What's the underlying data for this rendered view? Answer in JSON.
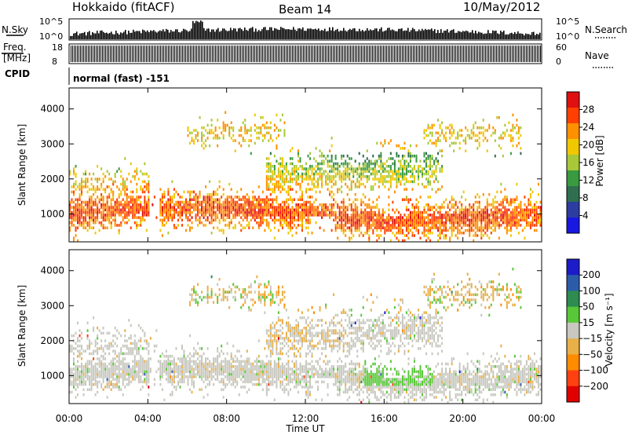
{
  "header": {
    "station": "Hokkaido (fitACF)",
    "beam": "Beam 14",
    "date": "10/May/2012"
  },
  "top_panels": {
    "nsky_label": "N.Sky",
    "nsky_ticks": [
      "10^5",
      "10^0"
    ],
    "nsearch_label": "N.Search",
    "freq_label_1": "Freq.",
    "freq_label_2": "[MHz]",
    "freq_ticks": [
      "18",
      "8"
    ],
    "nave_ticks": [
      "60",
      "0"
    ],
    "nave_label": "Nave",
    "cpid_label": "CPID",
    "cpid_text": "normal (fast) -151"
  },
  "chart_data": [
    {
      "type": "heatmap",
      "panel": "power",
      "ylabel": "Slant Range [km]",
      "xlabel": "",
      "ylim": [
        200,
        4600
      ],
      "yticks": [
        1000,
        2000,
        3000,
        4000
      ],
      "xlim_hours": [
        0,
        24
      ],
      "colorbar": {
        "label": "Power [dB]",
        "ticks": [
          4,
          8,
          12,
          16,
          20,
          24,
          28
        ],
        "range": [
          0,
          32
        ],
        "colors": [
          "#1818e0",
          "#2c3ca0",
          "#2f6f50",
          "#3a9a40",
          "#a8c838",
          "#f0c800",
          "#ff9000",
          "#ff4000",
          "#e01010"
        ]
      }
    },
    {
      "type": "heatmap",
      "panel": "velocity",
      "ylabel": "Slant Range [km]",
      "xlabel": "Time UT",
      "ylim": [
        200,
        4600
      ],
      "yticks": [
        1000,
        2000,
        3000,
        4000
      ],
      "xlim_hours": [
        0,
        24
      ],
      "xticks": [
        "00:00",
        "04:00",
        "08:00",
        "12:00",
        "16:00",
        "20:00",
        "00:00"
      ],
      "colorbar": {
        "label": "Velocity [m s⁻¹]",
        "ticks": [
          "200",
          "100",
          "50",
          "15",
          "−15",
          "−50",
          "−100",
          "−200"
        ],
        "colors": [
          "#1c1cc8",
          "#2c5ca8",
          "#2e8c50",
          "#58c838",
          "#c8c8c0",
          "#e8b048",
          "#ff8c00",
          "#ff4010",
          "#e00000"
        ]
      }
    }
  ]
}
